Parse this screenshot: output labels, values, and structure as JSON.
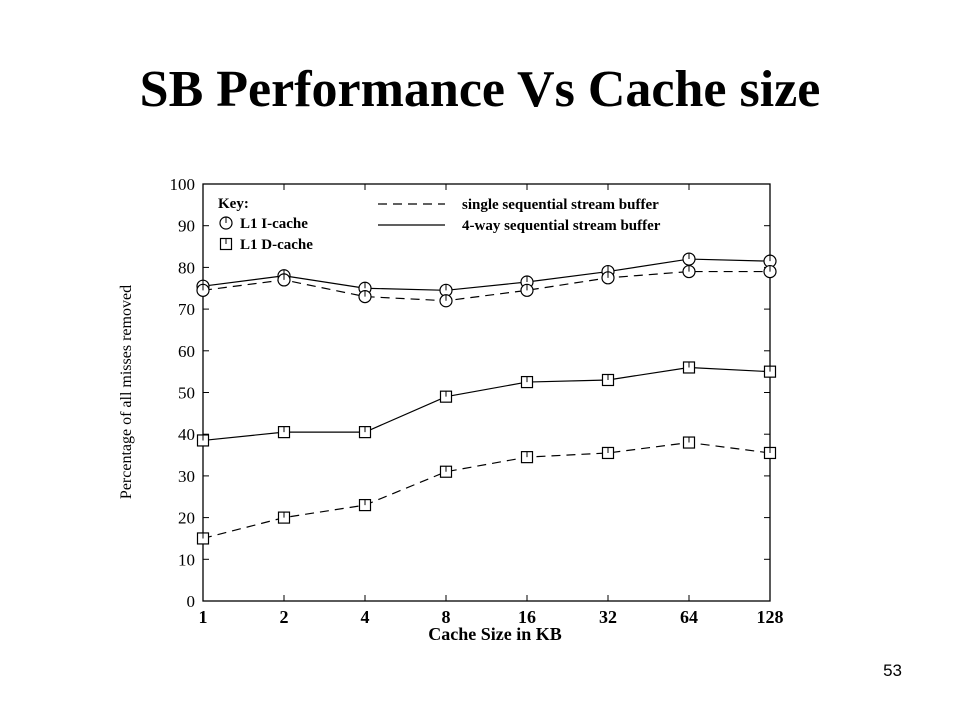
{
  "slide": {
    "title": "SB Performance Vs Cache size",
    "page_number": "53"
  },
  "chart_data": {
    "type": "line",
    "xlabel": "Cache Size in KB",
    "ylabel": "Percentage of all misses removed",
    "categories": [
      "1",
      "2",
      "4",
      "8",
      "16",
      "32",
      "64",
      "128"
    ],
    "ylim": [
      0,
      100
    ],
    "yticks": [
      "0",
      "10",
      "20",
      "30",
      "40",
      "50",
      "60",
      "70",
      "80",
      "90",
      "100"
    ],
    "grid": false,
    "legend": {
      "title": "Key:",
      "position": "top",
      "markers": [
        {
          "label": "L1 I-cache",
          "marker": "circle"
        },
        {
          "label": "L1 D-cache",
          "marker": "square"
        }
      ],
      "lines": [
        {
          "label": "single sequential stream buffer",
          "style": "dashed"
        },
        {
          "label": "4-way sequential stream buffer",
          "style": "solid"
        }
      ]
    },
    "series": [
      {
        "cache": "L1 I-cache",
        "buffer": "4-way sequential stream buffer",
        "marker": "circle",
        "style": "solid",
        "values": [
          75.5,
          78,
          75,
          74.5,
          76.5,
          79,
          82,
          81.5
        ]
      },
      {
        "cache": "L1 I-cache",
        "buffer": "single sequential stream buffer",
        "marker": "circle",
        "style": "dashed",
        "values": [
          74.5,
          77,
          73,
          72,
          74.5,
          77.5,
          79,
          79
        ]
      },
      {
        "cache": "L1 D-cache",
        "buffer": "4-way sequential stream buffer",
        "marker": "square",
        "style": "solid",
        "values": [
          38.5,
          40.5,
          40.5,
          49,
          52.5,
          53,
          56,
          55
        ]
      },
      {
        "cache": "L1 D-cache",
        "buffer": "single sequential stream buffer",
        "marker": "square",
        "style": "dashed",
        "values": [
          15,
          20,
          23,
          31,
          34.5,
          35.5,
          38,
          35.5
        ]
      }
    ]
  }
}
